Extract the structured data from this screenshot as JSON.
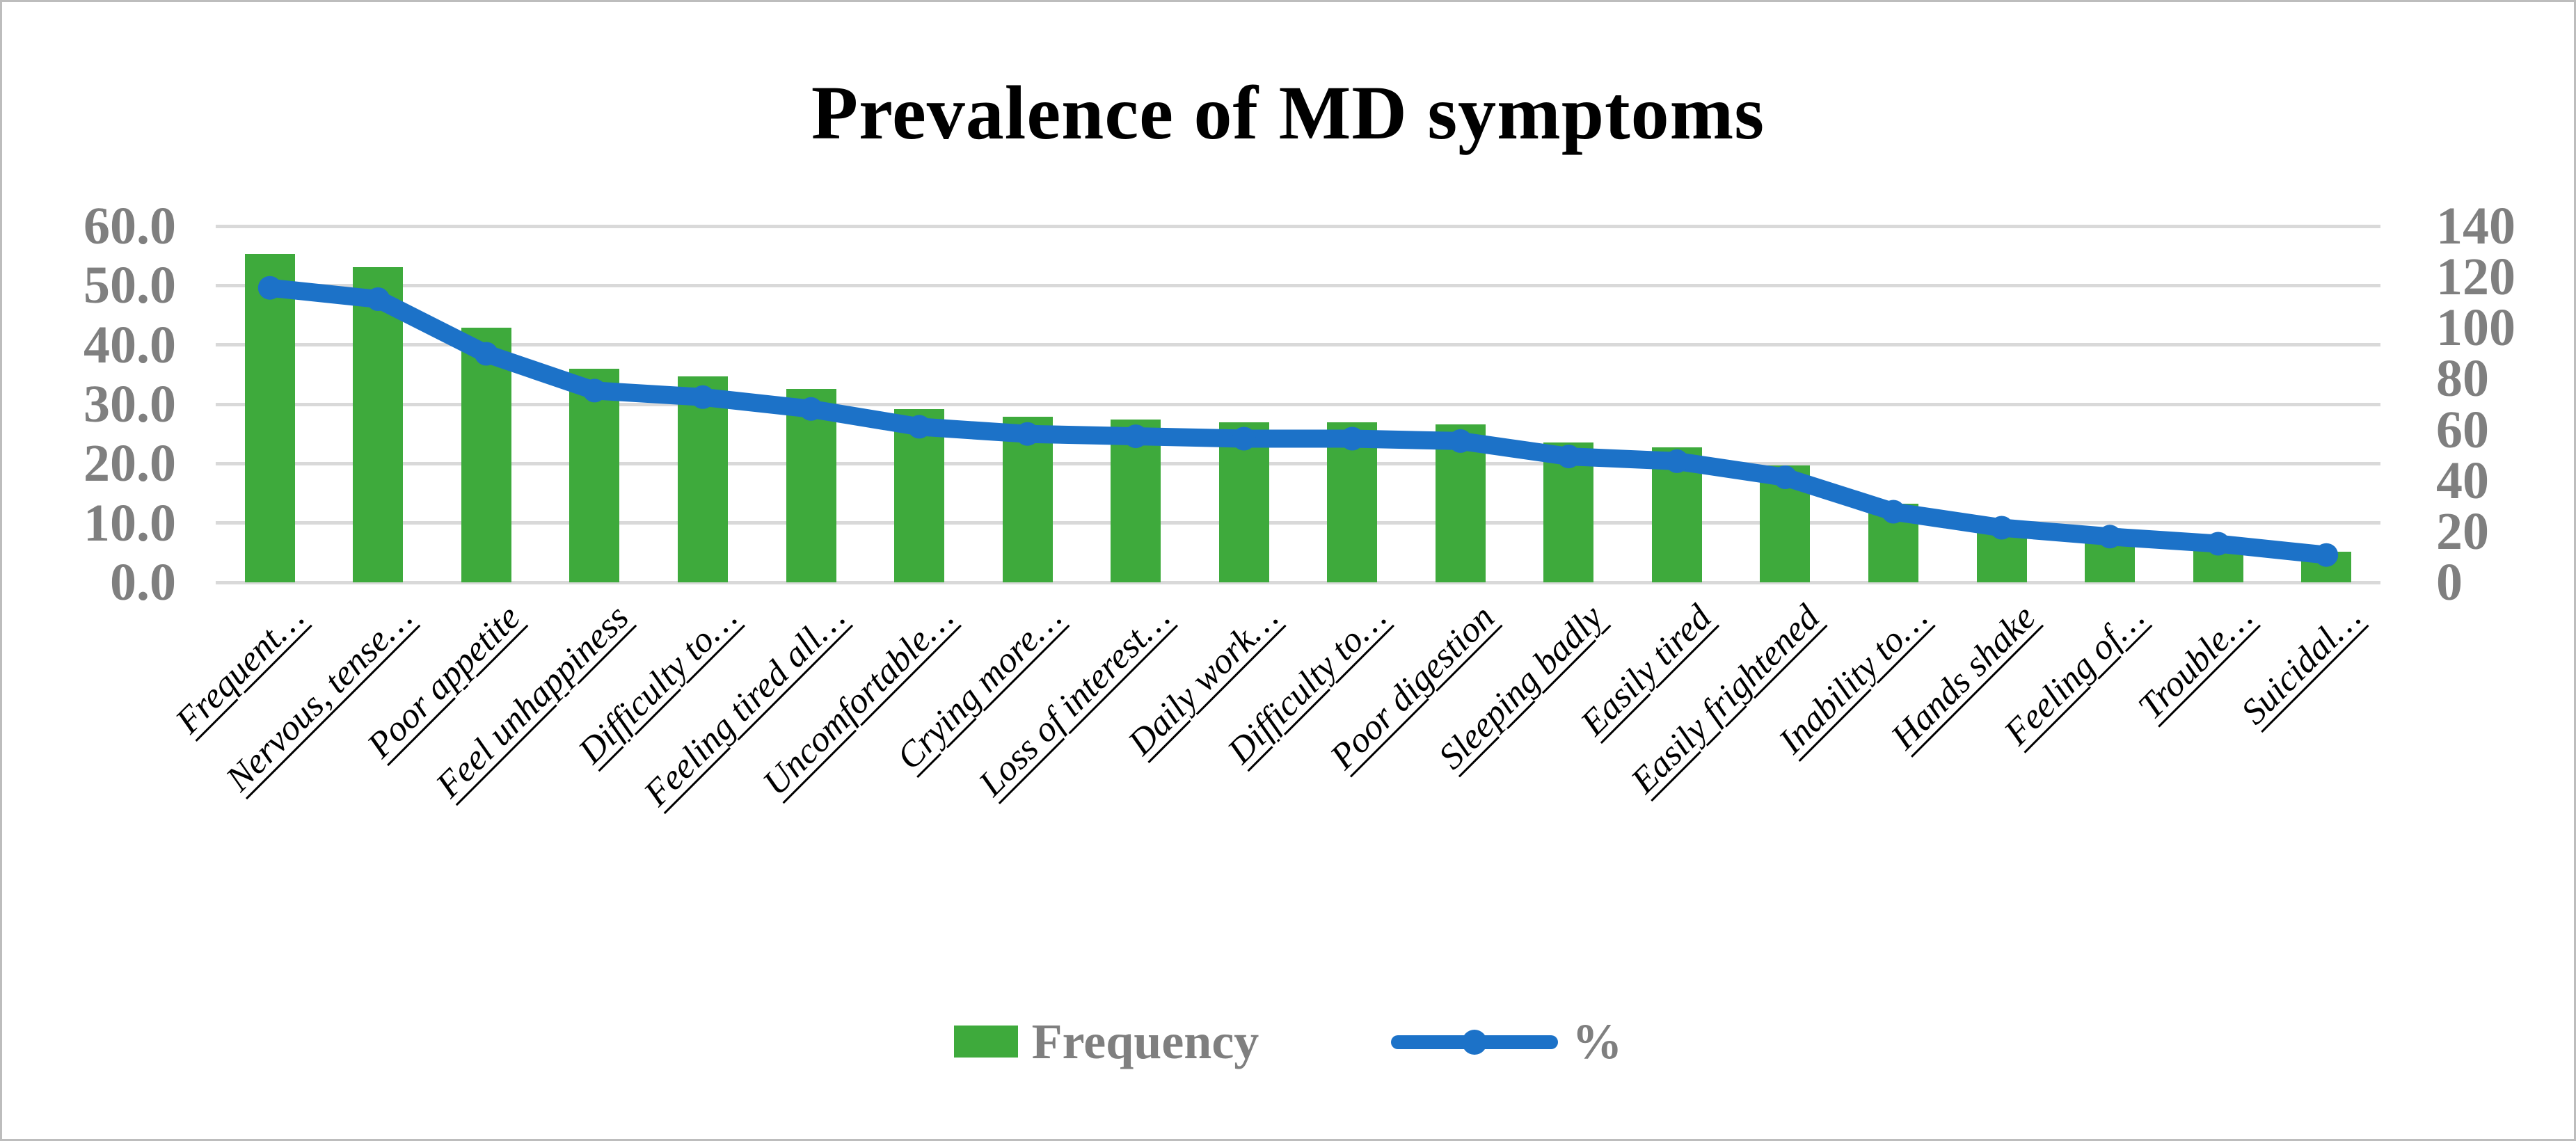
{
  "colors": {
    "bar_green": "#3eaa3c",
    "line_blue": "#1c72c8",
    "gridline": "#d9d9d9",
    "axis_text": "#7f7f7f",
    "category_text": "#000000",
    "figure_border": "#bdbdbd",
    "background": "#ffffff"
  },
  "legend": {
    "frequency_label": "Frequency",
    "percent_label": "%"
  },
  "chart_data": {
    "type": "bar",
    "subtype": "combo-bar-line",
    "title": "Prevalence of MD symptoms",
    "grid": true,
    "legend_position": "bottom",
    "categories": [
      "Frequent…",
      "Nervous, tense…",
      "Poor appetite",
      "Feel unhappiness",
      "Difficulty to…",
      "Feeling tired all…",
      "Uncomfortable…",
      "Crying more…",
      "Loss of interest…",
      "Daily work…",
      "Difficulty to…",
      "Poor digestion",
      "Sleeping badly",
      "Easily tired",
      "Easily frightened",
      "Inability to…",
      "Hands shake",
      "Feeling of…",
      "Trouble…",
      "Suicidal…"
    ],
    "series": [
      {
        "name": "Frequency",
        "type": "bar",
        "axis": "right",
        "values": [
          129,
          124,
          100,
          84,
          81,
          76,
          68,
          65,
          64,
          63,
          63,
          62,
          55,
          53,
          46,
          31,
          24,
          20,
          17,
          12
        ]
      },
      {
        "name": "%",
        "type": "line",
        "axis": "left",
        "values": [
          49.6,
          47.7,
          38.5,
          32.3,
          31.2,
          29.2,
          26.2,
          25.0,
          24.6,
          24.2,
          24.2,
          23.8,
          21.2,
          20.4,
          17.7,
          11.9,
          9.2,
          7.7,
          6.5,
          4.6
        ]
      }
    ],
    "left_axis": {
      "range": [
        0,
        60
      ],
      "ticks": [
        "60.0",
        "50.0",
        "40.0",
        "30.0",
        "20.0",
        "10.0",
        "0.0"
      ]
    },
    "right_axis": {
      "range": [
        0,
        140
      ],
      "ticks": [
        "140",
        "120",
        "100",
        "80",
        "60",
        "40",
        "20",
        "0"
      ]
    }
  }
}
